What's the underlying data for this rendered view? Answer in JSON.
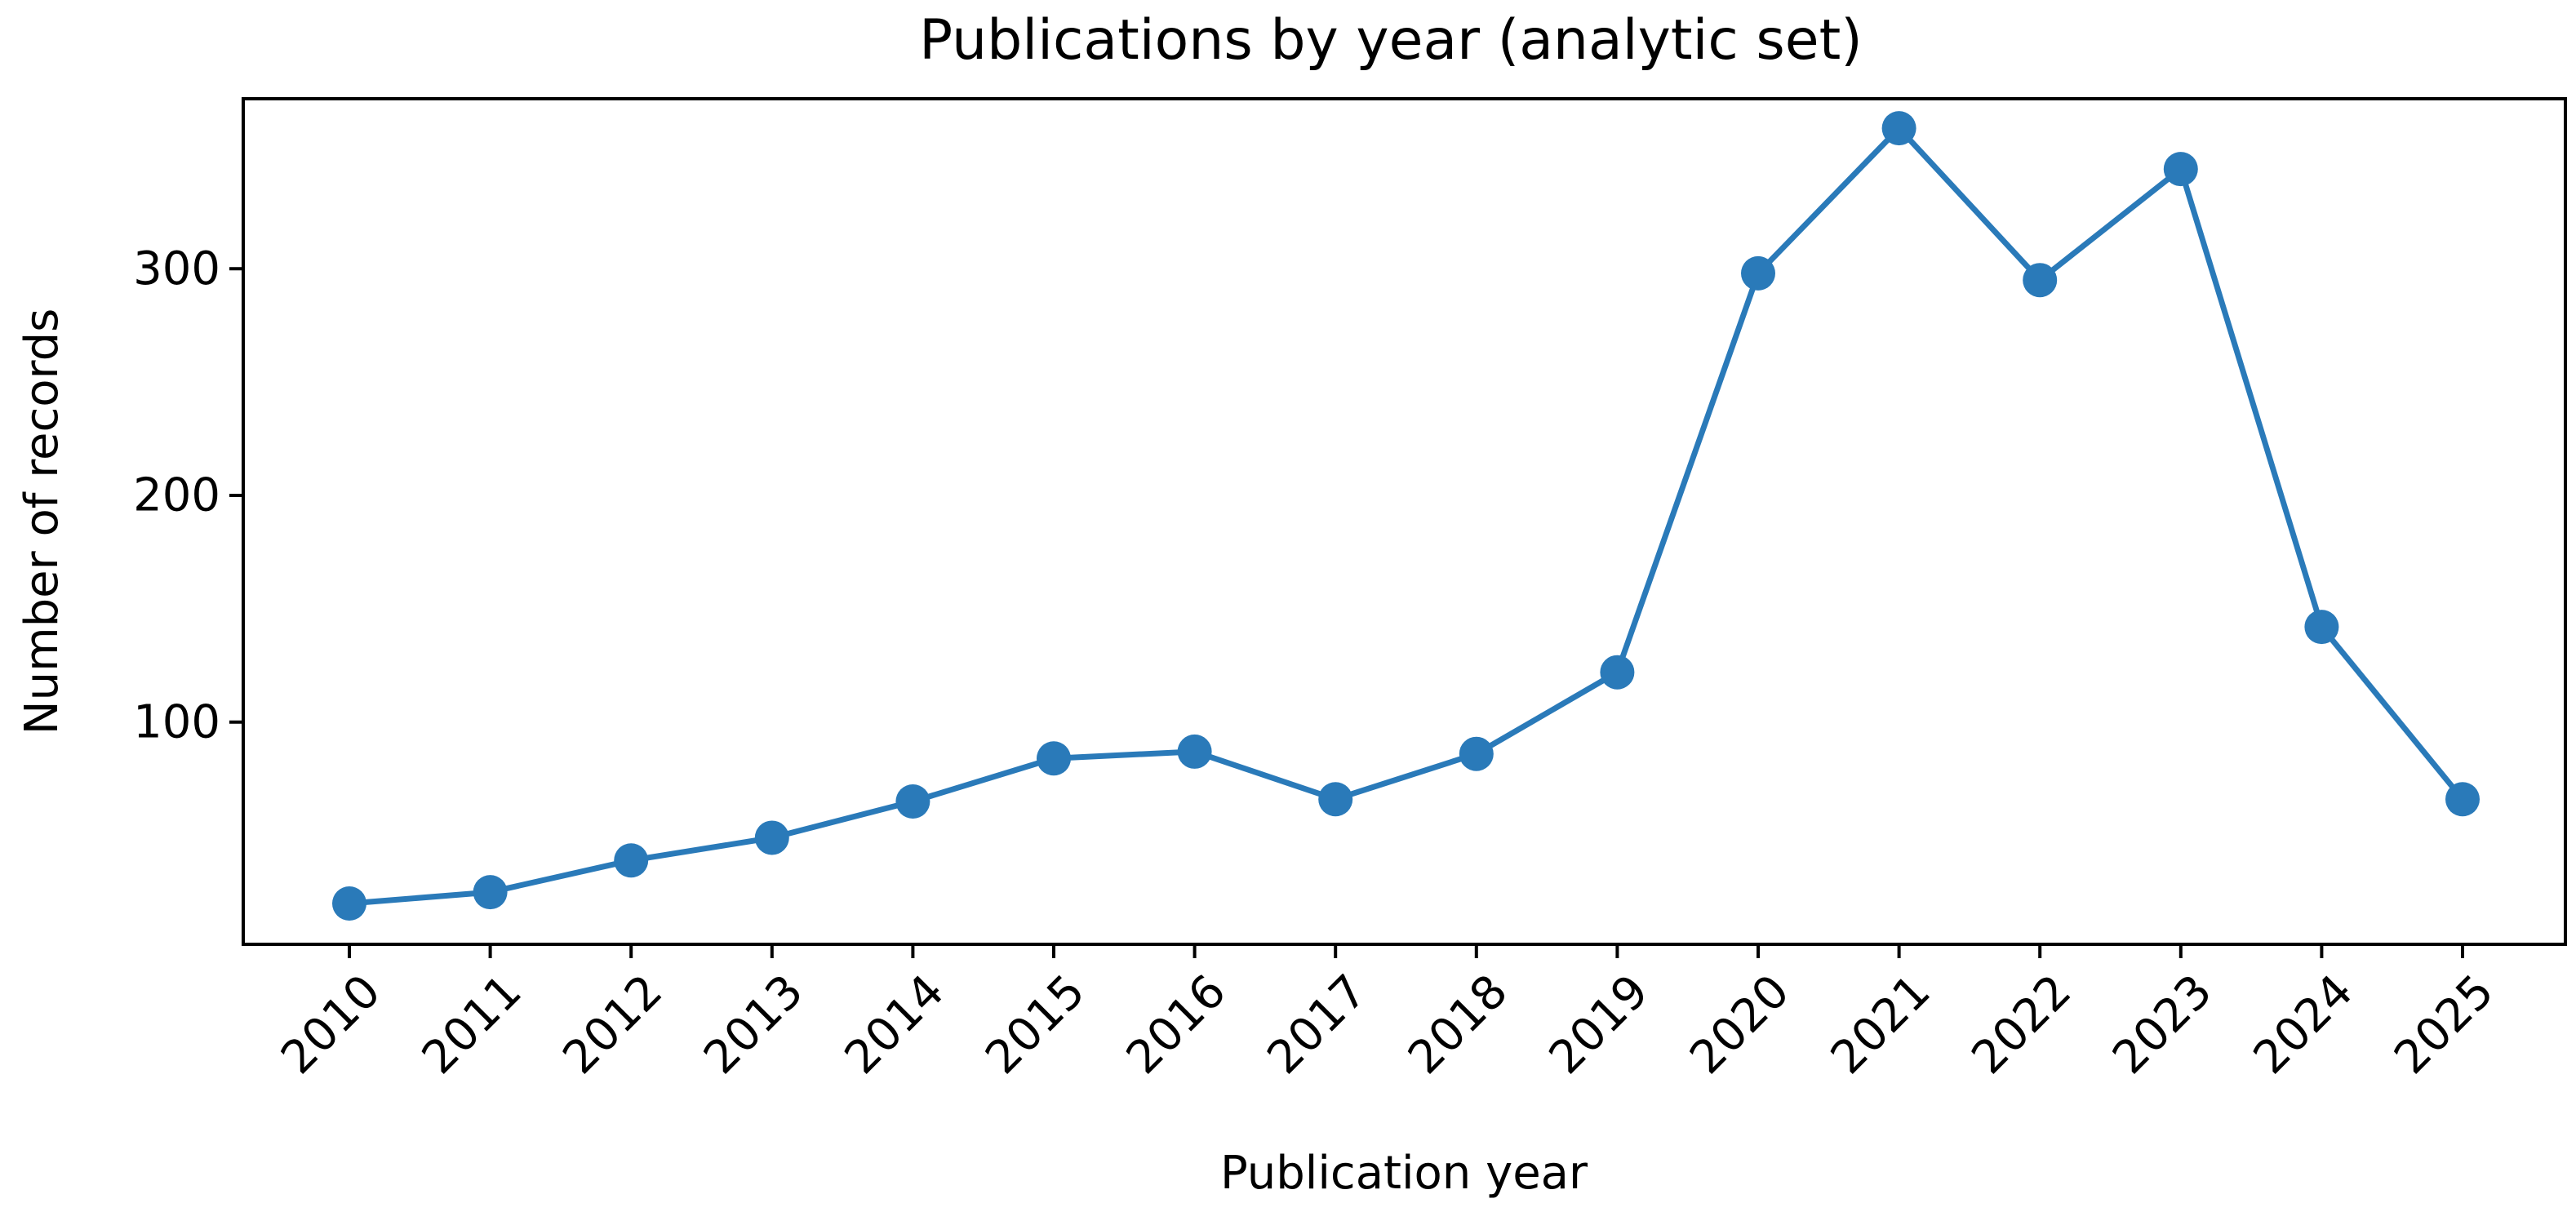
{
  "chart_data": {
    "type": "line",
    "title": "Publications by year (analytic set)",
    "xlabel": "Publication year",
    "ylabel": "Number of records",
    "x": [
      "2010",
      "2011",
      "2012",
      "2013",
      "2014",
      "2015",
      "2016",
      "2017",
      "2018",
      "2019",
      "2020",
      "2021",
      "2022",
      "2023",
      "2024",
      "2025"
    ],
    "series": [
      {
        "values": [
          20,
          25,
          39,
          49,
          65,
          84,
          87,
          66,
          86,
          122,
          298,
          362,
          295,
          344,
          142,
          66
        ]
      }
    ],
    "y_ticks": [
      100,
      200,
      300
    ],
    "ylim": [
      2,
      375
    ],
    "grid": false,
    "legend": false,
    "color": "#2a7ab9",
    "x_tick_rotation_deg": 45
  }
}
